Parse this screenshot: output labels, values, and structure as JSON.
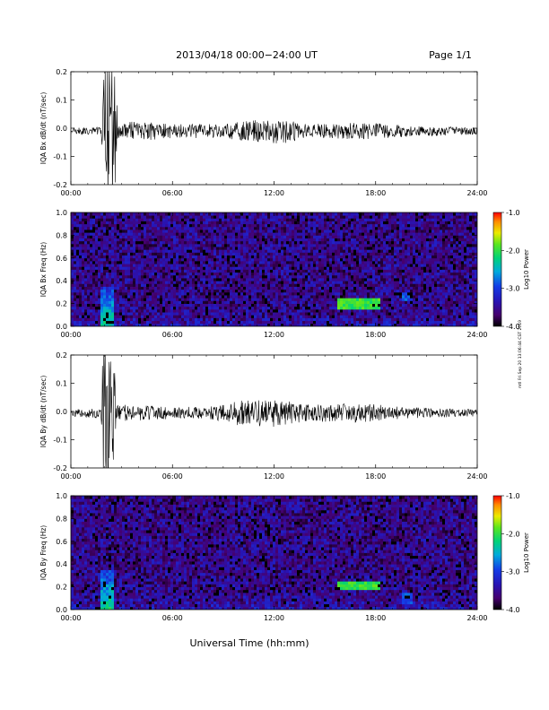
{
  "header": {
    "title": "2013/04/18  00:00−24:00 UT",
    "page": "Page 1/1"
  },
  "xlabel": "Universal Time (hh:mm)",
  "side_stamp": "mtl Fri Sep 20 13:06:44 CST 2019",
  "colorbar": {
    "label": "Log10 Power",
    "ticks": [
      "-1.0",
      "-2.0",
      "-3.0",
      "-4.0"
    ],
    "range": [
      -4.0,
      -1.0
    ]
  },
  "chart_data": [
    {
      "type": "line",
      "ylabel": "IQA Bx dB/dt (nT/sec)",
      "xlim": [
        0,
        24
      ],
      "ylim": [
        -0.2,
        0.2
      ],
      "x_ticks": [
        "00:00",
        "06:00",
        "12:00",
        "18:00",
        "24:00"
      ],
      "y_ticks": [
        "0.2",
        "0.1",
        "0.0",
        "-0.1",
        "-0.2"
      ],
      "baseline": -0.01,
      "envelope": [
        {
          "x": 0.0,
          "amp": 0.012
        },
        {
          "x": 1.8,
          "amp": 0.015
        },
        {
          "x": 2.0,
          "amp": 0.25
        },
        {
          "x": 2.6,
          "amp": 0.25
        },
        {
          "x": 2.8,
          "amp": 0.03
        },
        {
          "x": 4.0,
          "amp": 0.035
        },
        {
          "x": 6.0,
          "amp": 0.025
        },
        {
          "x": 9.0,
          "amp": 0.025
        },
        {
          "x": 11.0,
          "amp": 0.04
        },
        {
          "x": 12.5,
          "amp": 0.045
        },
        {
          "x": 14.0,
          "amp": 0.025
        },
        {
          "x": 17.5,
          "amp": 0.03
        },
        {
          "x": 20.0,
          "amp": 0.02
        },
        {
          "x": 24.0,
          "amp": 0.012
        }
      ]
    },
    {
      "type": "heatmap",
      "ylabel": "IQA Bx Freq (Hz)",
      "xlim": [
        0,
        24
      ],
      "ylim": [
        0,
        1
      ],
      "x_ticks": [
        "00:00",
        "06:00",
        "12:00",
        "18:00",
        "24:00"
      ],
      "y_ticks": [
        "1.0",
        "0.8",
        "0.6",
        "0.4",
        "0.2",
        "0.0"
      ],
      "features": [
        {
          "kind": "burst",
          "x0": 1.8,
          "x1": 2.6,
          "f_max": 0.35,
          "power": -2.2
        },
        {
          "kind": "band",
          "x0": 15.8,
          "x1": 18.2,
          "f": 0.2,
          "power": -2.0
        },
        {
          "kind": "band",
          "x0": 19.5,
          "x1": 20.2,
          "f": 0.27,
          "power": -2.9
        }
      ]
    },
    {
      "type": "line",
      "ylabel": "IQA By dB/dt (nT/sec)",
      "xlim": [
        0,
        24
      ],
      "ylim": [
        -0.2,
        0.2
      ],
      "x_ticks": [
        "00:00",
        "06:00",
        "12:00",
        "18:00",
        "24:00"
      ],
      "y_ticks": [
        "0.2",
        "0.1",
        "0.0",
        "-0.1",
        "-0.2"
      ],
      "baseline": -0.005,
      "envelope": [
        {
          "x": 0.0,
          "amp": 0.012
        },
        {
          "x": 1.8,
          "amp": 0.02
        },
        {
          "x": 1.9,
          "amp": 0.25
        },
        {
          "x": 2.5,
          "amp": 0.25
        },
        {
          "x": 2.7,
          "amp": 0.03
        },
        {
          "x": 5.0,
          "amp": 0.025
        },
        {
          "x": 8.0,
          "amp": 0.02
        },
        {
          "x": 10.0,
          "amp": 0.045
        },
        {
          "x": 12.0,
          "amp": 0.05
        },
        {
          "x": 14.0,
          "amp": 0.03
        },
        {
          "x": 17.0,
          "amp": 0.035
        },
        {
          "x": 20.0,
          "amp": 0.02
        },
        {
          "x": 24.0,
          "amp": 0.012
        }
      ]
    },
    {
      "type": "heatmap",
      "ylabel": "IQA By Freq (Hz)",
      "xlim": [
        0,
        24
      ],
      "ylim": [
        0,
        1
      ],
      "x_ticks": [
        "00:00",
        "06:00",
        "12:00",
        "18:00",
        "24:00"
      ],
      "y_ticks": [
        "1.0",
        "0.8",
        "0.6",
        "0.4",
        "0.2",
        "0.0"
      ],
      "features": [
        {
          "kind": "burst",
          "x0": 1.8,
          "x1": 2.6,
          "f_max": 0.35,
          "power": -2.2
        },
        {
          "kind": "band",
          "x0": 15.8,
          "x1": 18.2,
          "f": 0.22,
          "power": -2.0
        },
        {
          "kind": "band",
          "x0": 19.5,
          "x1": 20.2,
          "f": 0.1,
          "power": -2.9
        }
      ]
    }
  ]
}
